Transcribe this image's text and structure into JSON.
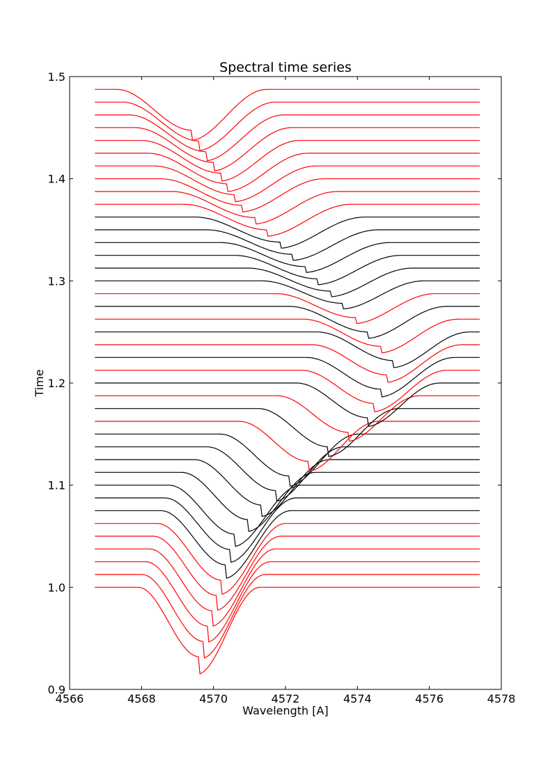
{
  "chart_data": {
    "type": "line",
    "title": "Spectral time series",
    "xlabel": "Wavelength [A]",
    "ylabel": "Time",
    "xlim": [
      4566,
      4578
    ],
    "ylim": [
      0.9,
      1.5
    ],
    "grid": false,
    "x_ticks": [
      "4566",
      "4568",
      "4570",
      "4572",
      "4574",
      "4576",
      "4578"
    ],
    "y_ticks": [
      "0.9",
      "1.0",
      "1.1",
      "1.2",
      "1.3",
      "1.4",
      "1.5"
    ],
    "x_range_spectra": [
      4566.7,
      4577.4
    ],
    "times": [
      1.0,
      1.0125,
      1.025,
      1.0375,
      1.05,
      1.0625,
      1.075,
      1.0875,
      1.1,
      1.1125,
      1.125,
      1.1375,
      1.15,
      1.1625,
      1.175,
      1.1875,
      1.2,
      1.2125,
      1.225,
      1.2375,
      1.25,
      1.2625,
      1.275,
      1.2875,
      1.3,
      1.3125,
      1.325,
      1.3375,
      1.35,
      1.3625,
      1.375,
      1.3875,
      1.4,
      1.4125,
      1.425,
      1.4375,
      1.45,
      1.4625,
      1.475,
      1.4875
    ],
    "series": [
      {
        "color": "#000000"
      },
      {
        "color": "#ff0000"
      }
    ]
  }
}
